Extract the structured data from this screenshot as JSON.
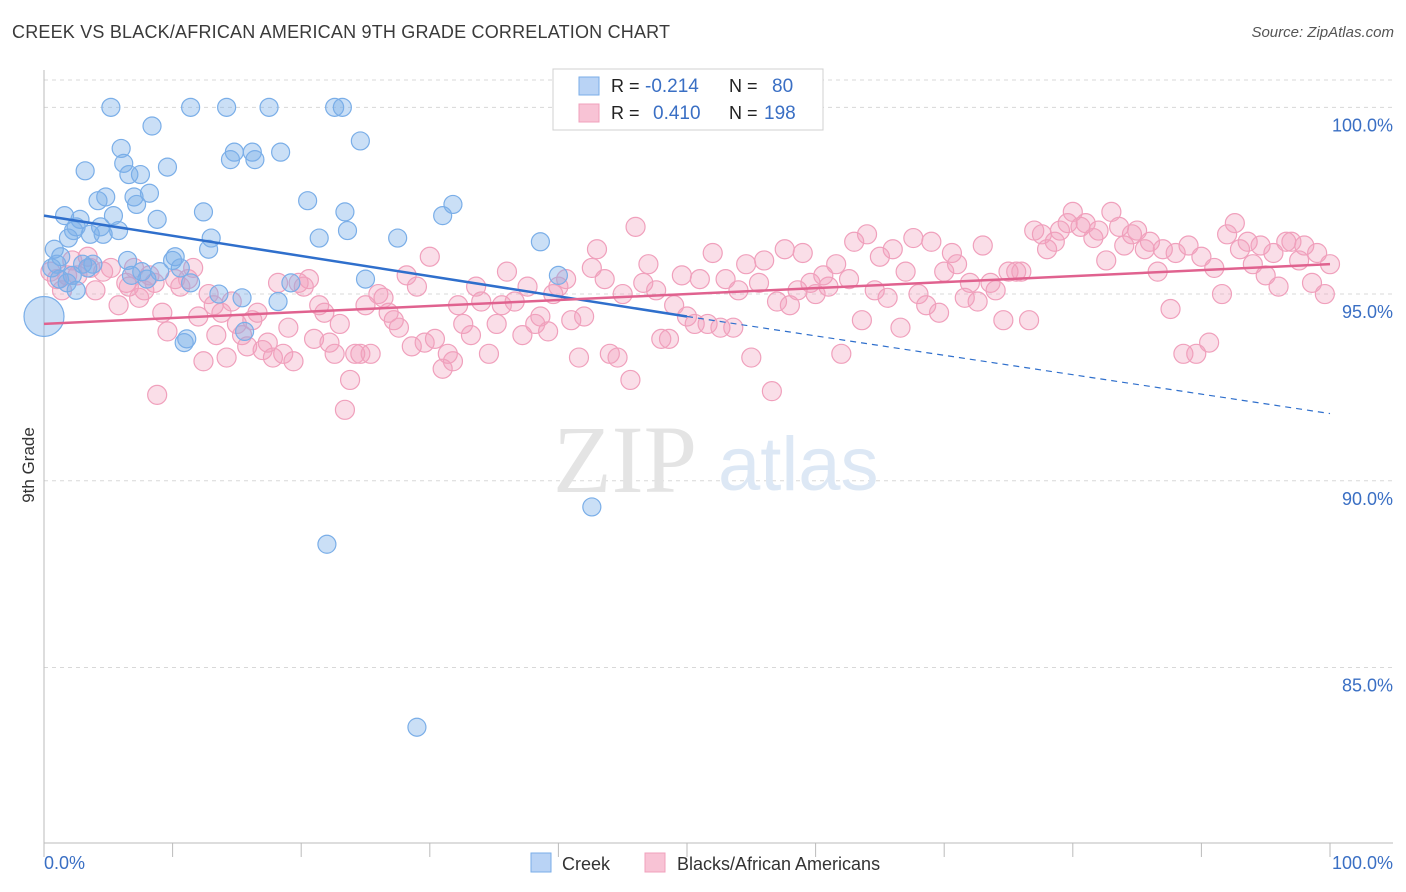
{
  "title": "CREEK VS BLACK/AFRICAN AMERICAN 9TH GRADE CORRELATION CHART",
  "source": "Source: ZipAtlas.com",
  "watermark": {
    "zip": "ZIP",
    "atlas": "atlas"
  },
  "colors": {
    "creek": "#7aaee8",
    "creek_line": "#2f6fcc",
    "black": "#f0a0bc",
    "black_line": "#e0628f",
    "axis_text": "#3a6fc4",
    "grid": "#d8d8d8"
  },
  "legend_top": {
    "rows": [
      {
        "r_label": "R =",
        "r_value": "-0.214",
        "n_label": "N =",
        "n_value": "80"
      },
      {
        "r_label": "R =",
        "r_value": "0.410",
        "n_label": "N =",
        "n_value": "198"
      }
    ]
  },
  "legend_bottom": [
    "Creek",
    "Blacks/African Americans"
  ],
  "chart_data": {
    "type": "scatter",
    "title": "CREEK VS BLACK/AFRICAN AMERICAN 9TH GRADE CORRELATION CHART",
    "xlabel": "",
    "ylabel": "9th Grade",
    "xlim": [
      0,
      100
    ],
    "ylim": [
      80.3,
      101.0
    ],
    "x_tick_labels": [
      "0.0%",
      "100.0%"
    ],
    "y_ticks": [
      100,
      95,
      90,
      85
    ],
    "y_tick_labels": [
      "100.0%",
      "95.0%",
      "90.0%",
      "85.0%"
    ],
    "grid": "horizontal dashed",
    "series": [
      {
        "name": "Creek",
        "R": -0.214,
        "N": 80,
        "trend": {
          "x0": 0,
          "y0": 97.1,
          "x1": 50,
          "y1": 94.4,
          "dashed_to_x": 100,
          "dashed_to_y": 91.8
        },
        "points": [
          [
            0,
            94.4
          ],
          [
            0.6,
            95.7
          ],
          [
            0.8,
            96.2
          ],
          [
            1,
            95.8
          ],
          [
            1.2,
            95.4
          ],
          [
            1.3,
            96
          ],
          [
            1.6,
            97.1
          ],
          [
            1.9,
            96.5
          ],
          [
            2.2,
            95.5
          ],
          [
            2.3,
            96.7
          ],
          [
            2.5,
            96.8
          ],
          [
            2.5,
            95.1
          ],
          [
            2.8,
            97
          ],
          [
            3,
            95.8
          ],
          [
            3.2,
            98.3
          ],
          [
            3.4,
            95.7
          ],
          [
            3.6,
            96.6
          ],
          [
            3.8,
            95.8
          ],
          [
            4.2,
            97.5
          ],
          [
            4.4,
            96.8
          ],
          [
            4.6,
            96.6
          ],
          [
            4.8,
            97.6
          ],
          [
            5.2,
            100
          ],
          [
            5.4,
            97.1
          ],
          [
            5.8,
            96.7
          ],
          [
            6,
            98.9
          ],
          [
            6.2,
            98.5
          ],
          [
            6.5,
            95.9
          ],
          [
            6.6,
            98.2
          ],
          [
            7,
            97.6
          ],
          [
            7.2,
            97.4
          ],
          [
            7.5,
            98.2
          ],
          [
            7.6,
            95.6
          ],
          [
            8,
            95.4
          ],
          [
            8.2,
            97.7
          ],
          [
            8.4,
            99.5
          ],
          [
            8.8,
            97
          ],
          [
            9,
            95.6
          ],
          [
            9.6,
            98.4
          ],
          [
            10,
            95.9
          ],
          [
            10.2,
            96
          ],
          [
            10.6,
            95.7
          ],
          [
            10.9,
            93.7
          ],
          [
            11.1,
            93.8
          ],
          [
            11.4,
            95.3
          ],
          [
            11.4,
            100
          ],
          [
            12.4,
            97.2
          ],
          [
            12.8,
            96.2
          ],
          [
            13,
            96.5
          ],
          [
            13.6,
            95
          ],
          [
            14.2,
            100
          ],
          [
            14.5,
            98.6
          ],
          [
            14.8,
            98.8
          ],
          [
            15.4,
            94.9
          ],
          [
            15.6,
            94
          ],
          [
            16.2,
            98.8
          ],
          [
            16.4,
            98.6
          ],
          [
            17.5,
            100
          ],
          [
            18.2,
            94.8
          ],
          [
            18.4,
            98.8
          ],
          [
            19.2,
            95.3
          ],
          [
            20.5,
            97.5
          ],
          [
            21.4,
            96.5
          ],
          [
            22.6,
            100
          ],
          [
            23.2,
            100
          ],
          [
            23.4,
            97.2
          ],
          [
            23.6,
            96.7
          ],
          [
            24.6,
            99.1
          ],
          [
            25,
            95.4
          ],
          [
            27.5,
            96.5
          ],
          [
            29,
            83.4
          ],
          [
            31,
            97.1
          ],
          [
            31.8,
            97.4
          ],
          [
            22,
            88.3
          ],
          [
            38.6,
            96.4
          ],
          [
            40,
            95.5
          ],
          [
            42.6,
            89.3
          ],
          [
            1.8,
            95.3
          ],
          [
            6.8,
            95.5
          ]
        ]
      },
      {
        "name": "Blacks/African Americans",
        "R": 0.41,
        "N": 198,
        "trend": {
          "x0": 0,
          "y0": 94.2,
          "x1": 100,
          "y1": 95.8
        },
        "points": [
          [
            0.5,
            95.6
          ],
          [
            1,
            95.4
          ],
          [
            1.4,
            95.1
          ],
          [
            1.8,
            95.5
          ],
          [
            2.2,
            95.9
          ],
          [
            2.6,
            95.5
          ],
          [
            3.4,
            96
          ],
          [
            3.6,
            95.7
          ],
          [
            4,
            95.1
          ],
          [
            4.6,
            95.6
          ],
          [
            5.2,
            95.7
          ],
          [
            5.8,
            94.7
          ],
          [
            6.4,
            95.3
          ],
          [
            6.6,
            95.2
          ],
          [
            7,
            95.7
          ],
          [
            7.4,
            94.9
          ],
          [
            7.8,
            95.1
          ],
          [
            8.2,
            95.5
          ],
          [
            8.6,
            95.3
          ],
          [
            8.8,
            92.3
          ],
          [
            9.2,
            94.5
          ],
          [
            9.6,
            94
          ],
          [
            10.2,
            95.4
          ],
          [
            10.6,
            95.2
          ],
          [
            11.2,
            95.4
          ],
          [
            11.6,
            95.7
          ],
          [
            12,
            94.4
          ],
          [
            12.4,
            93.2
          ],
          [
            12.8,
            95
          ],
          [
            13.2,
            94.7
          ],
          [
            13.4,
            93.9
          ],
          [
            13.8,
            94.5
          ],
          [
            14.2,
            93.3
          ],
          [
            14.6,
            94.8
          ],
          [
            15,
            94.2
          ],
          [
            15.4,
            93.9
          ],
          [
            15.8,
            93.6
          ],
          [
            16.2,
            94.3
          ],
          [
            16.6,
            94.5
          ],
          [
            17,
            93.5
          ],
          [
            17.4,
            93.7
          ],
          [
            17.8,
            93.3
          ],
          [
            18.2,
            95.3
          ],
          [
            18.6,
            93.4
          ],
          [
            19,
            94.1
          ],
          [
            19.4,
            93.2
          ],
          [
            19.8,
            95.3
          ],
          [
            20.2,
            95.2
          ],
          [
            20.6,
            95.4
          ],
          [
            21,
            93.8
          ],
          [
            21.4,
            94.7
          ],
          [
            21.8,
            94.5
          ],
          [
            22.2,
            93.7
          ],
          [
            22.6,
            93.4
          ],
          [
            23,
            94.2
          ],
          [
            23.4,
            91.9
          ],
          [
            23.8,
            92.7
          ],
          [
            24.2,
            93.4
          ],
          [
            24.6,
            93.4
          ],
          [
            25,
            94.7
          ],
          [
            25.4,
            93.4
          ],
          [
            26,
            95
          ],
          [
            26.4,
            94.9
          ],
          [
            26.8,
            94.5
          ],
          [
            27.2,
            94.3
          ],
          [
            27.6,
            94.1
          ],
          [
            28.2,
            95.5
          ],
          [
            28.6,
            93.6
          ],
          [
            29,
            95.2
          ],
          [
            29.6,
            93.7
          ],
          [
            30,
            96
          ],
          [
            30.4,
            93.8
          ],
          [
            31,
            93
          ],
          [
            31.4,
            93.4
          ],
          [
            31.8,
            93.2
          ],
          [
            32.2,
            94.7
          ],
          [
            32.6,
            94.2
          ],
          [
            33.2,
            93.9
          ],
          [
            33.6,
            95.2
          ],
          [
            34,
            94.8
          ],
          [
            34.6,
            93.4
          ],
          [
            35.2,
            94.2
          ],
          [
            35.6,
            94.7
          ],
          [
            36,
            95.6
          ],
          [
            36.6,
            94.8
          ],
          [
            37.2,
            93.9
          ],
          [
            37.6,
            95.2
          ],
          [
            38.2,
            94.2
          ],
          [
            38.6,
            94.4
          ],
          [
            39.2,
            94
          ],
          [
            39.6,
            95
          ],
          [
            40,
            95.2
          ],
          [
            40.6,
            95.4
          ],
          [
            41,
            94.3
          ],
          [
            41.6,
            93.3
          ],
          [
            42,
            94.4
          ],
          [
            42.6,
            95.7
          ],
          [
            43,
            96.2
          ],
          [
            43.6,
            95.4
          ],
          [
            44,
            93.4
          ],
          [
            44.6,
            93.3
          ],
          [
            45,
            95
          ],
          [
            45.6,
            92.7
          ],
          [
            46,
            96.8
          ],
          [
            46.6,
            95.3
          ],
          [
            47,
            95.8
          ],
          [
            47.6,
            95.1
          ],
          [
            48,
            93.8
          ],
          [
            48.6,
            93.8
          ],
          [
            49,
            94.7
          ],
          [
            49.6,
            95.5
          ],
          [
            50,
            94.4
          ],
          [
            50.6,
            94.2
          ],
          [
            51,
            95.4
          ],
          [
            51.6,
            94.2
          ],
          [
            52,
            96.1
          ],
          [
            52.6,
            94.1
          ],
          [
            53,
            95.4
          ],
          [
            53.6,
            94.1
          ],
          [
            54,
            95.1
          ],
          [
            54.6,
            95.8
          ],
          [
            55,
            93.3
          ],
          [
            55.6,
            95.3
          ],
          [
            56,
            95.9
          ],
          [
            56.6,
            92.4
          ],
          [
            57,
            94.8
          ],
          [
            57.6,
            96.2
          ],
          [
            58,
            94.7
          ],
          [
            58.6,
            95.1
          ],
          [
            59,
            96.1
          ],
          [
            59.6,
            95.3
          ],
          [
            60,
            95
          ],
          [
            60.6,
            95.5
          ],
          [
            61,
            95.2
          ],
          [
            61.6,
            95.8
          ],
          [
            62,
            93.4
          ],
          [
            62.6,
            95.4
          ],
          [
            63,
            96.4
          ],
          [
            63.6,
            94.3
          ],
          [
            64,
            96.6
          ],
          [
            64.6,
            95.1
          ],
          [
            65,
            96
          ],
          [
            65.6,
            94.9
          ],
          [
            66,
            96.2
          ],
          [
            66.6,
            94.1
          ],
          [
            67,
            95.6
          ],
          [
            67.6,
            96.5
          ],
          [
            68,
            95
          ],
          [
            68.6,
            94.7
          ],
          [
            69,
            96.4
          ],
          [
            69.6,
            94.5
          ],
          [
            70,
            95.6
          ],
          [
            70.6,
            96.1
          ],
          [
            71,
            95.8
          ],
          [
            71.6,
            94.9
          ],
          [
            72,
            95.3
          ],
          [
            72.6,
            94.8
          ],
          [
            73,
            96.3
          ],
          [
            73.6,
            95.3
          ],
          [
            74,
            95.1
          ],
          [
            74.6,
            94.3
          ],
          [
            75,
            95.6
          ],
          [
            75.6,
            95.6
          ],
          [
            76,
            95.6
          ],
          [
            76.6,
            94.3
          ],
          [
            77,
            96.7
          ],
          [
            77.6,
            96.6
          ],
          [
            78,
            96.2
          ],
          [
            78.6,
            96.4
          ],
          [
            79,
            96.7
          ],
          [
            79.6,
            96.9
          ],
          [
            80,
            97.2
          ],
          [
            80.6,
            96.8
          ],
          [
            81,
            96.9
          ],
          [
            81.6,
            96.5
          ],
          [
            82,
            96.7
          ],
          [
            82.6,
            95.9
          ],
          [
            83,
            97.2
          ],
          [
            83.6,
            96.8
          ],
          [
            84,
            96.3
          ],
          [
            84.6,
            96.6
          ],
          [
            85,
            96.7
          ],
          [
            85.6,
            96.2
          ],
          [
            86,
            96.4
          ],
          [
            86.6,
            95.6
          ],
          [
            87,
            96.2
          ],
          [
            87.6,
            94.6
          ],
          [
            88,
            96.1
          ],
          [
            88.6,
            93.4
          ],
          [
            89,
            96.3
          ],
          [
            89.6,
            93.4
          ],
          [
            90,
            96
          ],
          [
            90.6,
            93.7
          ],
          [
            91,
            95.7
          ],
          [
            91.6,
            95
          ],
          [
            92,
            96.6
          ],
          [
            92.6,
            96.9
          ],
          [
            93,
            96.2
          ],
          [
            93.6,
            96.4
          ],
          [
            94,
            95.8
          ],
          [
            94.6,
            96.3
          ],
          [
            95,
            95.5
          ],
          [
            95.6,
            96.1
          ],
          [
            96,
            95.2
          ],
          [
            96.6,
            96.4
          ],
          [
            97,
            96.4
          ],
          [
            97.6,
            95.9
          ],
          [
            98,
            96.3
          ],
          [
            98.6,
            95.3
          ],
          [
            99,
            96.1
          ],
          [
            99.6,
            95
          ],
          [
            100,
            95.8
          ]
        ]
      }
    ]
  }
}
